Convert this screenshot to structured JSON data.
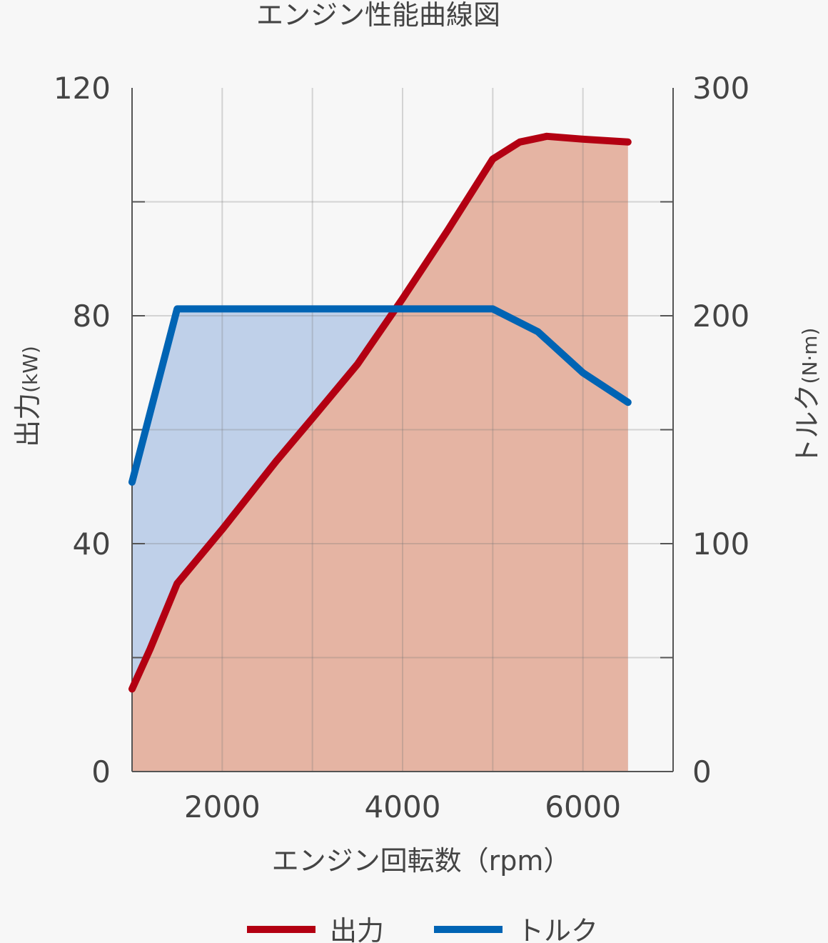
{
  "chart_data": {
    "type": "line",
    "title": "エンジン性能曲線図",
    "xlabel": "エンジン回転数（rpm）",
    "xlim": [
      1000,
      7000
    ],
    "x_ticks": [
      2000,
      4000,
      6000
    ],
    "y_left": {
      "label": "出力",
      "unit": "(kW)",
      "lim": [
        0,
        120
      ],
      "ticks": [
        0,
        40,
        80,
        120
      ]
    },
    "y_right": {
      "label": "トルク",
      "unit": "(N·m)",
      "lim": [
        0,
        300
      ],
      "ticks": [
        0,
        100,
        200,
        300
      ]
    },
    "grid": true,
    "legend_position": "bottom",
    "series": [
      {
        "name": "出力",
        "axis": "left",
        "color": "#b30012",
        "fill": "#e5b4a3",
        "points": [
          [
            1000,
            14.5
          ],
          [
            1200,
            21.5
          ],
          [
            1500,
            33
          ],
          [
            2000,
            42.5
          ],
          [
            2600,
            54.5
          ],
          [
            3000,
            62
          ],
          [
            3500,
            71.5
          ],
          [
            4000,
            83
          ],
          [
            4500,
            95
          ],
          [
            5000,
            107.5
          ],
          [
            5300,
            110.5
          ],
          [
            5600,
            111.5
          ],
          [
            6000,
            111
          ],
          [
            6500,
            110.5
          ]
        ]
      },
      {
        "name": "トルク",
        "axis": "right",
        "color": "#0064b4",
        "fill": "#bfd0e9",
        "points": [
          [
            1000,
            127
          ],
          [
            1500,
            203
          ],
          [
            5000,
            203
          ],
          [
            5500,
            193
          ],
          [
            6000,
            175
          ],
          [
            6500,
            162
          ]
        ]
      }
    ]
  }
}
